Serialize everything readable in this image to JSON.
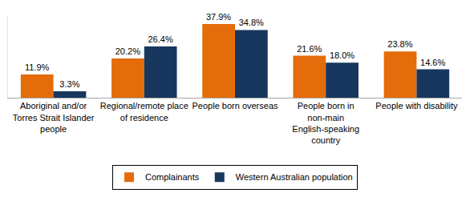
{
  "chart_data": {
    "type": "bar",
    "categories": [
      "Aboriginal and/or Torres Strait Islander people",
      "Regional/remote place of residence",
      "People born overseas",
      "People born in non-main English-speaking country",
      "People with disability"
    ],
    "series": [
      {
        "name": "Complainants",
        "color": "#E46C0A",
        "values": [
          11.9,
          20.2,
          37.9,
          21.6,
          23.8
        ],
        "value_labels": [
          "11.9%",
          "20.2%",
          "37.9%",
          "21.6%",
          "23.8%"
        ]
      },
      {
        "name": "Western Australian population",
        "color": "#17375E",
        "values": [
          3.3,
          26.4,
          34.8,
          18.0,
          14.6
        ],
        "value_labels": [
          "3.3%",
          "26.4%",
          "34.8%",
          "18.0%",
          "14.6%"
        ]
      }
    ],
    "ylim": [
      0,
      42
    ],
    "data_labels": true,
    "tick_labels": "x",
    "grid": false,
    "legend": "bottom"
  }
}
